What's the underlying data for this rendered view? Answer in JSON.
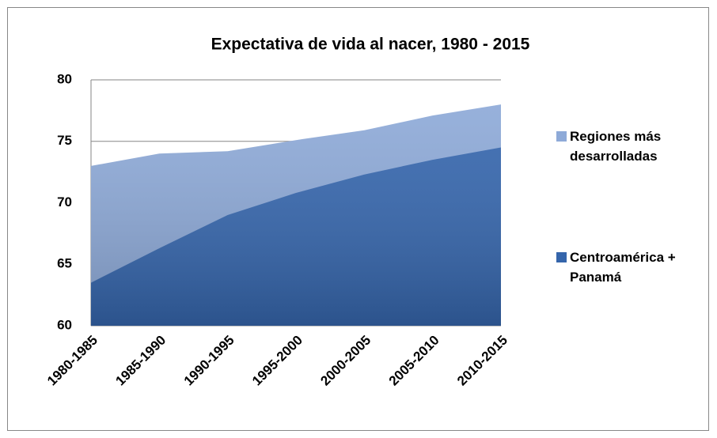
{
  "chart_data": {
    "type": "area",
    "title": "Expectativa de vida al nacer, 1980 - 2015",
    "categories": [
      "1980-1985",
      "1985-1990",
      "1990-1995",
      "1995-2000",
      "2000-2005",
      "2005-2010",
      "2010-2015"
    ],
    "series": [
      {
        "name": "Regiones más desarrolladas",
        "color": "#8eaad8",
        "values": [
          73.0,
          74.0,
          74.2,
          75.1,
          75.9,
          77.1,
          78.0
        ]
      },
      {
        "name": "Centroamérica + Panamá",
        "color": "#3565ab",
        "values": [
          63.5,
          66.3,
          69.0,
          70.8,
          72.3,
          73.5,
          74.5
        ]
      }
    ],
    "ylim": [
      60,
      80
    ],
    "yticks": [
      60,
      65,
      70,
      75,
      80
    ],
    "grid": true
  }
}
